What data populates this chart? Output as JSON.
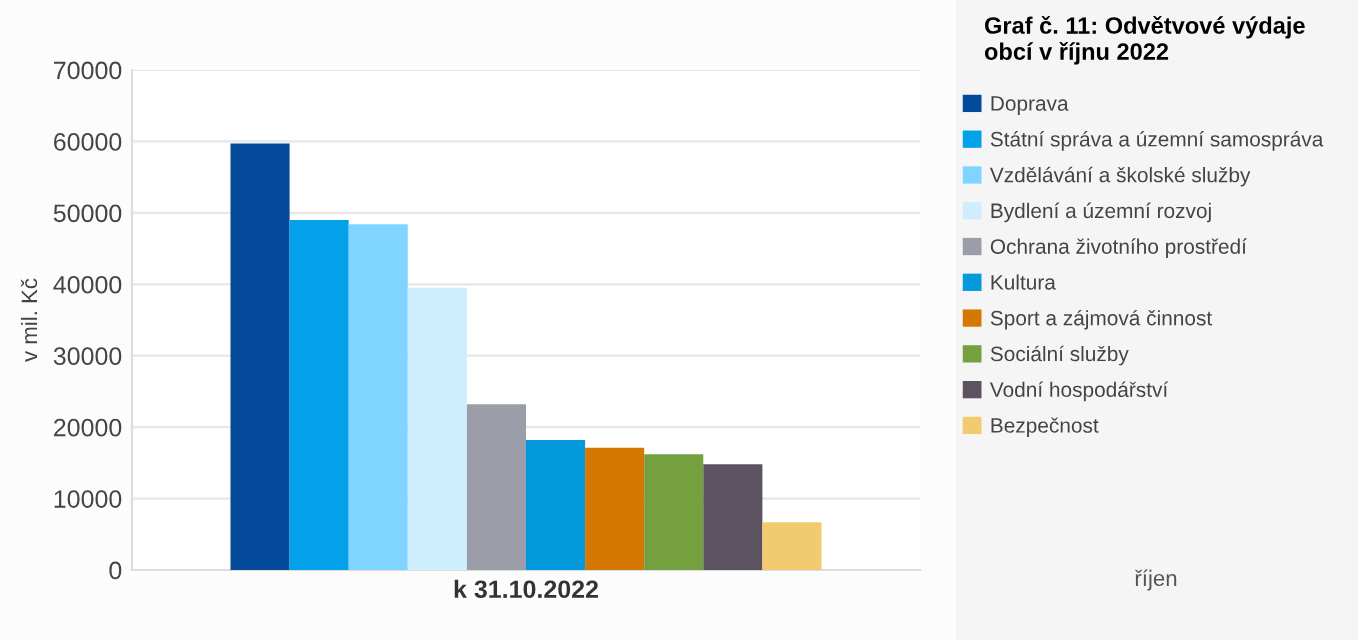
{
  "chart_data": {
    "type": "bar",
    "title": "Graf č. 11: Odvětvové výdaje obcí v říjnu 2022",
    "ylabel": "v mil. Kč",
    "categories": [
      "k 31.10.2022"
    ],
    "series": [
      {
        "name": "Doprava",
        "color": "#034a9a",
        "values": [
          59700
        ]
      },
      {
        "name": "Státní správa a územní samospráva",
        "color": "#03a1ea",
        "values": [
          49000
        ]
      },
      {
        "name": "Vzdělávání a školské služby",
        "color": "#7fd5ff",
        "values": [
          48400
        ]
      },
      {
        "name": "Bydlení a územní rozvoj",
        "color": "#ceedfd",
        "values": [
          39500
        ]
      },
      {
        "name": "Ochrana životního prostředí",
        "color": "#9b9ea8",
        "values": [
          23200
        ]
      },
      {
        "name": "Kultura",
        "color": "#0498dc",
        "values": [
          18200
        ]
      },
      {
        "name": "Sport a zájmová činnost",
        "color": "#d47802",
        "values": [
          17100
        ]
      },
      {
        "name": "Sociální služby",
        "color": "#75a03f",
        "values": [
          16200
        ]
      },
      {
        "name": "Vodní hospodářství",
        "color": "#5d525f",
        "values": [
          14800
        ]
      },
      {
        "name": "Bezpečnost",
        "color": "#f2cb70",
        "values": [
          6700
        ]
      }
    ],
    "ylim": [
      0,
      70000
    ],
    "yticks": [
      0,
      10000,
      20000,
      30000,
      40000,
      50000,
      60000,
      70000
    ],
    "grid": "y",
    "legend": "right",
    "annotations": [
      "říjen"
    ]
  }
}
